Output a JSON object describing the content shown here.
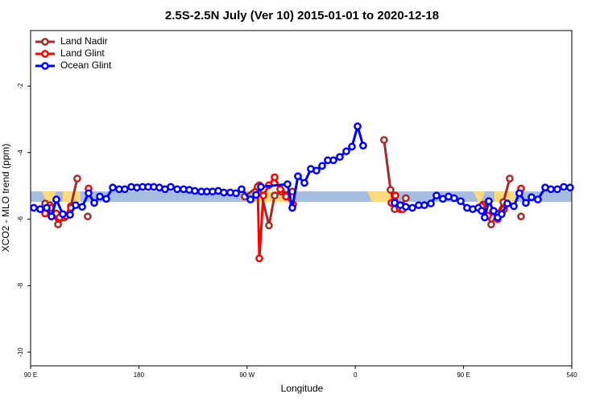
{
  "chart_data": {
    "type": "line",
    "title": "2.5S-2.5N July (Ver 10)   2015-01-01 to 2020-12-18",
    "x_label": "Longitude",
    "y_label": "XCO2 - MLO trend (ppm)",
    "xlim": [
      90,
      540
    ],
    "ylim": [
      -10.41,
      -0.33
    ],
    "xticks": [
      {
        "value": 90,
        "label": "90 E"
      },
      180,
      {
        "value": 270,
        "label": "90 W"
      },
      {
        "value": 360,
        "label": "0"
      },
      {
        "value": 450,
        "label": "90 E"
      },
      540
    ],
    "yticks": [
      -2,
      -4,
      -6,
      -8,
      -10
    ],
    "legend": "top-left",
    "series": [
      {
        "name": "Land Nadir",
        "color": "#a52a2a",
        "x": [
          102.1,
          106.1,
          112.8,
          118.1,
          123.5,
          128.8,
          null,
          137.5,
          null,
          268.1,
          280.2,
          288.2,
          292.9,
          298.3,
          302.9,
          307.6,
          null,
          383.9,
          389.3,
          392.7,
          397.4,
          402.0,
          null,
          466.3,
          473.0,
          477.7,
          483.1,
          488.4,
          null,
          497.8
        ],
        "values": [
          -5.53,
          -5.58,
          -6.16,
          -5.95,
          -5.61,
          -4.78,
          null,
          -5.92,
          null,
          -5.32,
          -4.98,
          -6.19,
          -5.29,
          -5.17,
          -5.27,
          -5.17,
          null,
          -3.62,
          -5.12,
          -5.7,
          -5.7,
          -5.37,
          null,
          -5.56,
          -6.16,
          -5.85,
          -5.49,
          -4.78,
          null,
          -5.92
        ]
      },
      {
        "name": "Land Glint",
        "color": "#ff0000",
        "x": [
          102.1,
          106.7,
          111.4,
          114.1,
          119.5,
          123.5,
          null,
          138.2,
          null,
          278.8,
          280.2,
          283.5,
          288.2,
          292.9,
          297.6,
          302.3,
          308.3,
          null,
          390.0,
          393.3,
          396.7,
          399.4,
          null,
          465.0,
          470.3,
          474.3,
          478.4,
          483.7,
          null,
          497.8
        ],
        "values": [
          -5.83,
          -5.66,
          -5.83,
          -5.95,
          -5.9,
          -5.66,
          null,
          -5.08,
          null,
          -5.03,
          -7.18,
          -5.29,
          -4.98,
          -4.74,
          -5.1,
          -5.32,
          -5.56,
          null,
          -5.51,
          -5.29,
          -5.66,
          -5.7,
          null,
          -5.61,
          -5.9,
          -5.78,
          -6.0,
          -5.7,
          null,
          -5.08
        ]
      },
      {
        "name": "Ocean Glint",
        "color": "#0000ff",
        "x": [
          92.7,
          98.0,
          103.4,
          107.4,
          111.4,
          116.8,
          122.8,
          127.5,
          132.9,
          138.2,
          142.9,
          147.6,
          152.9,
          158.3,
          163.6,
          168.3,
          173.7,
          178.4,
          183.1,
          187.8,
          192.4,
          197.1,
          201.8,
          206.5,
          211.9,
          217.2,
          221.9,
          226.6,
          232.0,
          236.6,
          241.3,
          246.0,
          250.7,
          256.1,
          260.8,
          265.4,
          272.8,
          277.5,
          281.5,
          303.6,
          307.6,
          312.3,
          317.7,
          323.0,
          327.7,
          332.4,
          337.1,
          341.8,
          347.1,
          352.5,
          357.2,
          361.9,
          366.5,
          null,
          392.7,
          397.4,
          402.0,
          407.4,
          412.7,
          417.4,
          422.8,
          427.5,
          432.8,
          437.5,
          442.2,
          447.6,
          452.9,
          457.6,
          462.3,
          465.0,
          467.6,
          471.0,
          475.0,
          478.4,
          481.7,
          486.4,
          491.8,
          496.4,
          501.8,
          506.5,
          511.8,
          517.9,
          522.6,
          528.0,
          533.3,
          538.6
        ],
        "values": [
          -5.66,
          -5.7,
          -5.66,
          -5.92,
          -5.41,
          -5.85,
          -5.87,
          -5.58,
          -5.63,
          -5.22,
          -5.51,
          -5.32,
          -5.39,
          -5.05,
          -5.1,
          -5.1,
          -5.03,
          -5.05,
          -5.03,
          -5.03,
          -5.03,
          -5.05,
          -5.1,
          -5.03,
          -5.1,
          -5.1,
          -5.12,
          -5.15,
          -5.17,
          -5.17,
          -5.17,
          -5.15,
          -5.2,
          -5.2,
          -5.22,
          -5.1,
          -5.41,
          -5.27,
          -5.03,
          -4.95,
          -5.66,
          -4.71,
          -4.91,
          -4.49,
          -4.54,
          -4.4,
          -4.23,
          -4.23,
          -4.13,
          -3.96,
          -3.82,
          -3.21,
          -3.79,
          null,
          -5.51,
          -5.58,
          -5.63,
          -5.66,
          -5.58,
          -5.58,
          -5.53,
          -5.29,
          -5.39,
          -5.32,
          -5.37,
          -5.46,
          -5.66,
          -5.7,
          -5.66,
          -5.75,
          -5.95,
          -5.46,
          -5.75,
          -5.95,
          -5.85,
          -5.53,
          -5.61,
          -5.22,
          -5.51,
          -5.34,
          -5.41,
          -5.05,
          -5.1,
          -5.1,
          -5.03,
          -5.05
        ]
      }
    ]
  }
}
